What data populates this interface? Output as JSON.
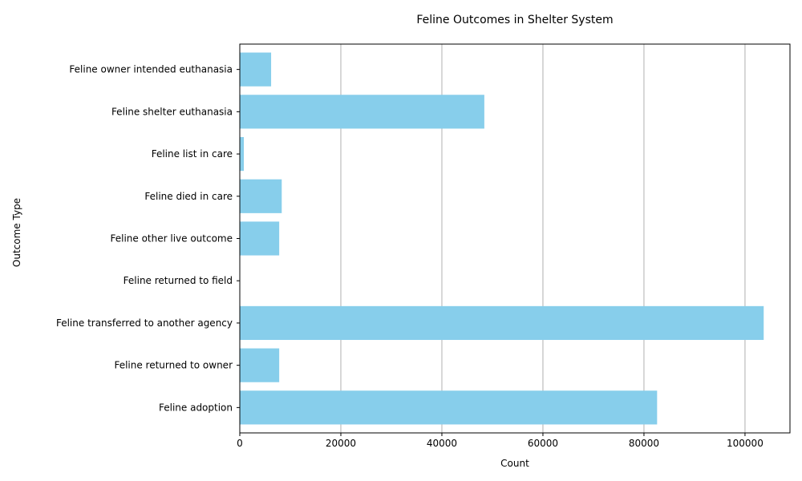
{
  "chart_data": {
    "type": "bar",
    "orientation": "horizontal",
    "title": "Feline Outcomes in Shelter System",
    "xlabel": "Count",
    "ylabel": "Outcome Type",
    "categories": [
      "Feline adoption",
      "Feline returned to owner",
      "Feline transferred to another agency",
      "Feline returned to field",
      "Feline other live outcome",
      "Feline died in care",
      "Feline list in care",
      "Feline shelter euthanasia",
      "Feline owner intended euthanasia"
    ],
    "values": [
      82600,
      7800,
      103700,
      0,
      7800,
      8300,
      800,
      48400,
      6200
    ],
    "xlim": [
      0,
      108900
    ],
    "xticks": [
      0,
      20000,
      40000,
      60000,
      80000,
      100000
    ],
    "xtick_labels": [
      "0",
      "20000",
      "40000",
      "60000",
      "80000",
      "100000"
    ],
    "grid": {
      "x": true,
      "y": false
    },
    "bar_color": "#87ceeb",
    "grid_color": "#b0b0b0"
  }
}
